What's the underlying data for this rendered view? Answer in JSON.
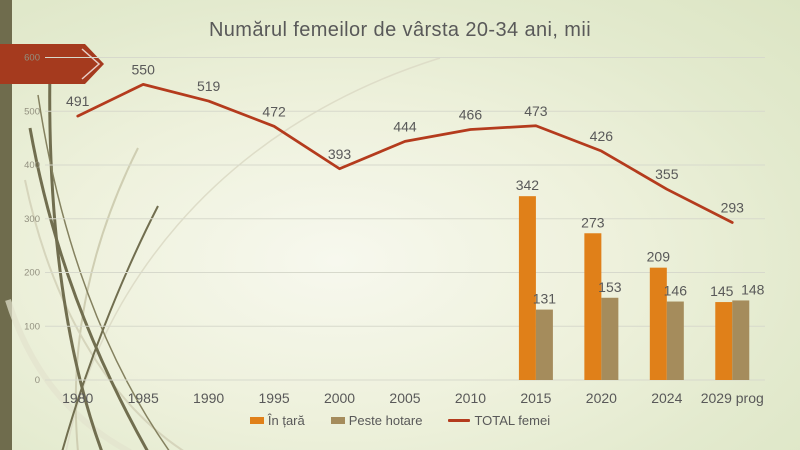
{
  "chart_data": {
    "type": "combo",
    "title": "Numărul femeilor de vârsta 20-34 ani, mii",
    "categories": [
      "1980",
      "1985",
      "1990",
      "1995",
      "2000",
      "2005",
      "2010",
      "2015",
      "2020",
      "2024",
      "2029 prog"
    ],
    "series": [
      {
        "name": "În țară",
        "type": "bar",
        "color": "#E08019",
        "values": [
          null,
          null,
          null,
          null,
          null,
          null,
          null,
          342,
          273,
          209,
          145
        ]
      },
      {
        "name": "Peste hotare",
        "type": "bar",
        "color": "#A58C5C",
        "values": [
          null,
          null,
          null,
          null,
          null,
          null,
          null,
          131,
          153,
          146,
          148
        ]
      },
      {
        "name": "TOTAL femei",
        "type": "line",
        "color": "#B43B1D",
        "values": [
          491,
          550,
          519,
          472,
          393,
          444,
          466,
          473,
          426,
          355,
          293
        ]
      }
    ],
    "ylim": [
      0,
      600
    ],
    "yticks": [
      0,
      100,
      200,
      300,
      400,
      500,
      600
    ],
    "grid": true,
    "legend_position": "bottom"
  },
  "theme": {
    "background": "#EEF1DC",
    "side_stripe": "#6F6C4D",
    "arrow": "#A53A1E",
    "gridline": "#D7D9CC",
    "label_text": "#595959",
    "axis_tick_text": "#92907F"
  }
}
